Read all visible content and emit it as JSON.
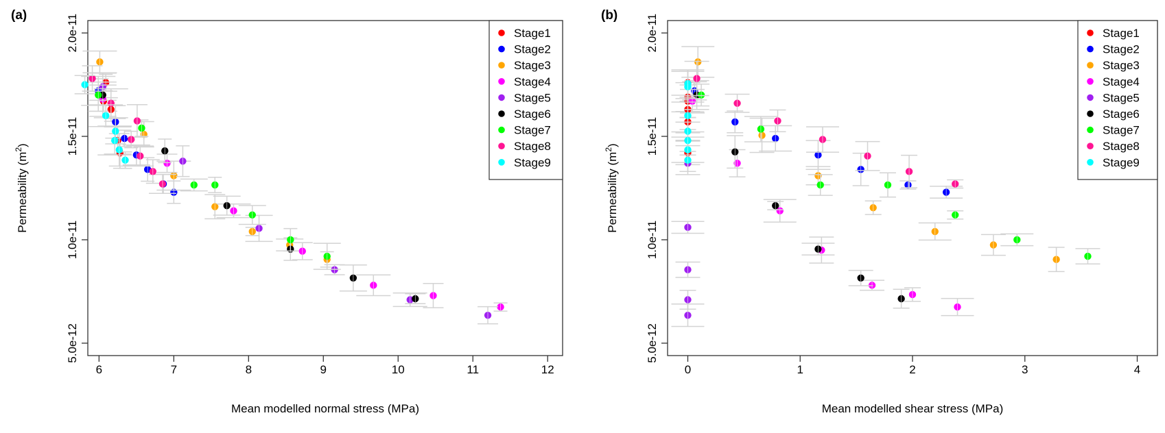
{
  "chart_data": [
    {
      "type": "scatter",
      "panel_label": "(a)",
      "title": "",
      "xlabel": "Mean modelled normal stress (MPa)",
      "ylabel": "Permeability (m",
      "ylabel_sup": "2",
      "ylabel_close": ")",
      "xlim": [
        5.85,
        12.2
      ],
      "ylim": [
        4.4e-12,
        2.06e-11
      ],
      "xticks": [
        6,
        7,
        8,
        9,
        10,
        11,
        12
      ],
      "xtick_labels": [
        "6",
        "7",
        "8",
        "9",
        "10",
        "11",
        "12"
      ],
      "yticks": [
        5e-12,
        1e-11,
        1.5e-11,
        2e-11
      ],
      "ytick_labels": [
        "5.0e-12",
        "1.0e-11",
        "1.5e-11",
        "2.0e-11"
      ],
      "grid": false,
      "legend_position": "top-right",
      "error_bars": true,
      "series": [
        {
          "name": "Stage1",
          "color": "#ff0000",
          "points": [
            [
              6.09,
              1.76e-11
            ],
            [
              6.06,
              1.67e-11
            ],
            [
              6.16,
              1.63e-11
            ],
            [
              6.25,
              1.48e-11
            ],
            [
              6.28,
              1.42e-11
            ]
          ]
        },
        {
          "name": "Stage2",
          "color": "#0000ff",
          "points": [
            [
              5.99,
              1.72e-11
            ],
            [
              6.22,
              1.57e-11
            ],
            [
              6.34,
              1.49e-11
            ],
            [
              6.5,
              1.41e-11
            ],
            [
              6.65,
              1.34e-11
            ],
            [
              6.86,
              1.27e-11
            ],
            [
              7.0,
              1.23e-11
            ]
          ]
        },
        {
          "name": "Stage3",
          "color": "#ffa500",
          "points": [
            [
              6.01,
              1.86e-11
            ],
            [
              6.6,
              1.51e-11
            ],
            [
              7.0,
              1.31e-11
            ],
            [
              7.55,
              1.16e-11
            ],
            [
              8.05,
              1.04e-11
            ],
            [
              8.55,
              9.75e-12
            ],
            [
              9.05,
              9.05e-12
            ]
          ]
        },
        {
          "name": "Stage4",
          "color": "#ff00ff",
          "points": [
            [
              6.05,
              1.68e-11
            ],
            [
              6.91,
              1.37e-11
            ],
            [
              7.8,
              1.14e-11
            ],
            [
              8.72,
              9.45e-12
            ],
            [
              9.67,
              7.8e-12
            ],
            [
              10.47,
              7.3e-12
            ],
            [
              11.37,
              6.75e-12
            ]
          ]
        },
        {
          "name": "Stage5",
          "color": "#a020f0",
          "points": [
            [
              6.05,
              1.74e-11
            ],
            [
              7.12,
              1.38e-11
            ],
            [
              8.14,
              1.055e-11
            ],
            [
              9.15,
              8.55e-12
            ],
            [
              10.16,
              7.1e-12
            ],
            [
              11.2,
              6.35e-12
            ]
          ]
        },
        {
          "name": "Stage6",
          "color": "#000000",
          "points": [
            [
              6.05,
              1.7e-11
            ],
            [
              6.88,
              1.43e-11
            ],
            [
              7.71,
              1.165e-11
            ],
            [
              8.56,
              9.55e-12
            ],
            [
              9.4,
              8.15e-12
            ],
            [
              10.23,
              7.15e-12
            ]
          ]
        },
        {
          "name": "Stage7",
          "color": "#00ff00",
          "points": [
            [
              5.99,
              1.7e-11
            ],
            [
              6.57,
              1.54e-11
            ],
            [
              7.27,
              1.265e-11
            ],
            [
              7.55,
              1.265e-11
            ],
            [
              8.05,
              1.12e-11
            ],
            [
              8.56,
              1e-11
            ],
            [
              9.05,
              9.2e-12
            ]
          ]
        },
        {
          "name": "Stage8",
          "color": "#ff1493",
          "points": [
            [
              5.91,
              1.78e-11
            ],
            [
              6.16,
              1.66e-11
            ],
            [
              6.51,
              1.575e-11
            ],
            [
              6.43,
              1.485e-11
            ],
            [
              6.55,
              1.405e-11
            ],
            [
              6.72,
              1.33e-11
            ],
            [
              6.85,
              1.27e-11
            ]
          ]
        },
        {
          "name": "Stage9",
          "color": "#00ffff",
          "points": [
            [
              5.81,
              1.75e-11
            ],
            [
              6.09,
              1.6e-11
            ],
            [
              6.22,
              1.525e-11
            ],
            [
              6.21,
              1.48e-11
            ],
            [
              6.27,
              1.435e-11
            ],
            [
              6.35,
              1.385e-11
            ]
          ]
        }
      ]
    },
    {
      "type": "scatter",
      "panel_label": "(b)",
      "title": "",
      "xlabel": "Mean modelled shear stress (MPa)",
      "ylabel": "Permeability (m",
      "ylabel_sup": "2",
      "ylabel_close": ")",
      "xlim": [
        -0.18,
        4.18
      ],
      "ylim": [
        4.4e-12,
        2.06e-11
      ],
      "xticks": [
        0,
        1,
        2,
        3,
        4
      ],
      "xtick_labels": [
        "0",
        "1",
        "2",
        "3",
        "4"
      ],
      "yticks": [
        5e-12,
        1e-11,
        1.5e-11,
        2e-11
      ],
      "ytick_labels": [
        "5.0e-12",
        "1.0e-11",
        "1.5e-11",
        "2.0e-11"
      ],
      "grid": false,
      "legend_position": "top-right",
      "error_bars": true,
      "series": [
        {
          "name": "Stage1",
          "color": "#ff0000",
          "points": [
            [
              0.0,
              1.76e-11
            ],
            [
              0.0,
              1.69e-11
            ],
            [
              0.0,
              1.67e-11
            ],
            [
              0.0,
              1.63e-11
            ],
            [
              0.0,
              1.57e-11
            ],
            [
              0.0,
              1.42e-11
            ]
          ]
        },
        {
          "name": "Stage2",
          "color": "#0000ff",
          "points": [
            [
              0.06,
              1.72e-11
            ],
            [
              0.42,
              1.57e-11
            ],
            [
              0.78,
              1.49e-11
            ],
            [
              1.16,
              1.41e-11
            ],
            [
              1.54,
              1.34e-11
            ],
            [
              1.96,
              1.265e-11
            ],
            [
              2.3,
              1.23e-11
            ]
          ]
        },
        {
          "name": "Stage3",
          "color": "#ffa500",
          "points": [
            [
              0.09,
              1.86e-11
            ],
            [
              0.66,
              1.505e-11
            ],
            [
              1.16,
              1.31e-11
            ],
            [
              1.65,
              1.155e-11
            ],
            [
              2.2,
              1.04e-11
            ],
            [
              2.72,
              9.75e-12
            ],
            [
              3.28,
              9.05e-12
            ]
          ]
        },
        {
          "name": "Stage4",
          "color": "#ff00ff",
          "points": [
            [
              0.04,
              1.67e-11
            ],
            [
              0.44,
              1.37e-11
            ],
            [
              0.82,
              1.14e-11
            ],
            [
              1.19,
              9.5e-12
            ],
            [
              1.64,
              7.8e-12
            ],
            [
              2.0,
              7.35e-12
            ],
            [
              2.4,
              6.75e-12
            ]
          ]
        },
        {
          "name": "Stage5",
          "color": "#a020f0",
          "points": [
            [
              0.0,
              1.37e-11
            ],
            [
              0.0,
              1.06e-11
            ],
            [
              0.0,
              8.55e-12
            ],
            [
              0.0,
              7.1e-12
            ],
            [
              0.0,
              6.35e-12
            ]
          ]
        },
        {
          "name": "Stage6",
          "color": "#000000",
          "points": [
            [
              0.08,
              1.7e-11
            ],
            [
              0.42,
              1.425e-11
            ],
            [
              0.78,
              1.165e-11
            ],
            [
              1.16,
              9.55e-12
            ],
            [
              1.54,
              8.15e-12
            ],
            [
              1.9,
              7.15e-12
            ]
          ]
        },
        {
          "name": "Stage7",
          "color": "#00ff00",
          "points": [
            [
              0.12,
              1.7e-11
            ],
            [
              0.65,
              1.535e-11
            ],
            [
              1.18,
              1.265e-11
            ],
            [
              1.78,
              1.265e-11
            ],
            [
              2.38,
              1.12e-11
            ],
            [
              2.93,
              1e-11
            ],
            [
              3.56,
              9.2e-12
            ]
          ]
        },
        {
          "name": "Stage8",
          "color": "#ff1493",
          "points": [
            [
              0.08,
              1.78e-11
            ],
            [
              0.44,
              1.66e-11
            ],
            [
              0.8,
              1.575e-11
            ],
            [
              1.2,
              1.485e-11
            ],
            [
              1.6,
              1.405e-11
            ],
            [
              1.97,
              1.33e-11
            ],
            [
              2.38,
              1.27e-11
            ]
          ]
        },
        {
          "name": "Stage9",
          "color": "#00ffff",
          "points": [
            [
              0.0,
              1.755e-11
            ],
            [
              0.0,
              1.74e-11
            ],
            [
              0.0,
              1.6e-11
            ],
            [
              0.0,
              1.525e-11
            ],
            [
              0.0,
              1.48e-11
            ],
            [
              0.0,
              1.435e-11
            ],
            [
              0.0,
              1.385e-11
            ]
          ]
        }
      ]
    }
  ]
}
